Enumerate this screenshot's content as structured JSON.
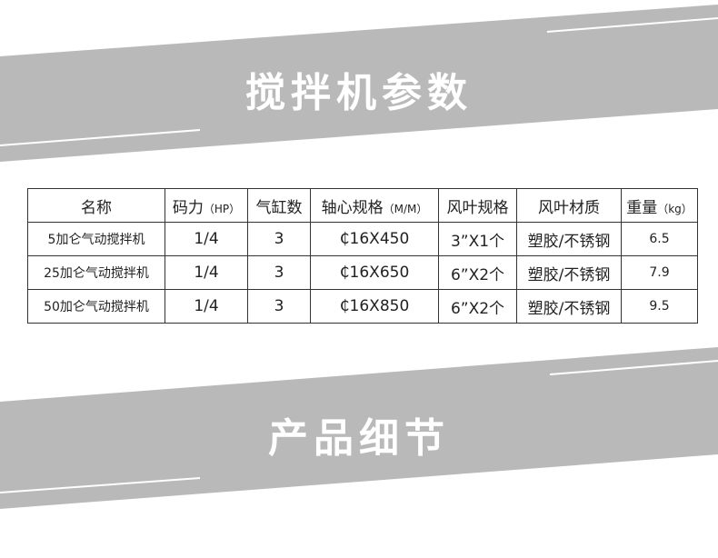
{
  "section1_title": "搅拌机参数",
  "section2_title": "产品细节",
  "banner_color": "#b9b9b9",
  "table": {
    "headers": [
      {
        "main": "名称",
        "unit": ""
      },
      {
        "main": "码力",
        "unit": "（HP）"
      },
      {
        "main": "气缸数",
        "unit": ""
      },
      {
        "main": "轴心规格",
        "unit": "（M/M）"
      },
      {
        "main": "风叶规格",
        "unit": ""
      },
      {
        "main": "风叶材质",
        "unit": ""
      },
      {
        "main": "重量",
        "unit": "（kg）"
      }
    ],
    "rows": [
      [
        "5加仑气动搅拌机",
        "1/4",
        "3",
        "₵16X450",
        "3”X1个",
        "塑胶/不锈钢",
        "6.5"
      ],
      [
        "25加仑气动搅拌机",
        "1/4",
        "3",
        "₵16X650",
        "6”X2个",
        "塑胶/不锈钢",
        "7.9"
      ],
      [
        "50加仑气动搅拌机",
        "1/4",
        "3",
        "₵16X850",
        "6”X2个",
        "塑胶/不锈钢",
        "9.5"
      ]
    ]
  }
}
